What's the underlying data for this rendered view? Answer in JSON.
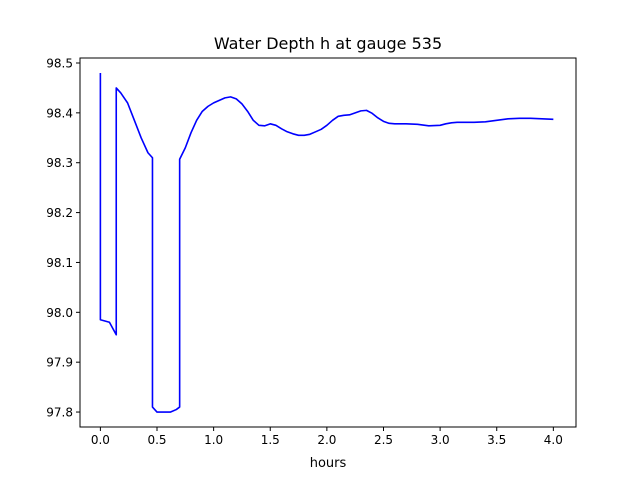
{
  "chart_data": {
    "type": "line",
    "title": "Water Depth h at gauge 535",
    "xlabel": "hours",
    "ylabel": "",
    "xlim": [
      -0.18,
      4.2
    ],
    "ylim": [
      97.77,
      98.51
    ],
    "x_ticks": [
      0.0,
      0.5,
      1.0,
      1.5,
      2.0,
      2.5,
      3.0,
      3.5,
      4.0
    ],
    "x_tick_labels": [
      "0.0",
      "0.5",
      "1.0",
      "1.5",
      "2.0",
      "2.5",
      "3.0",
      "3.5",
      "4.0"
    ],
    "y_ticks": [
      97.8,
      97.9,
      98.0,
      98.1,
      98.2,
      98.3,
      98.4,
      98.5
    ],
    "y_tick_labels": [
      "97.8",
      "97.9",
      "98.0",
      "98.1",
      "98.2",
      "98.3",
      "98.4",
      "98.5"
    ],
    "grid": false,
    "series": [
      {
        "color": "#0000ff",
        "x": [
          0.0,
          0.0,
          0.08,
          0.14,
          0.14,
          0.18,
          0.24,
          0.3,
          0.36,
          0.42,
          0.46,
          0.46,
          0.5,
          0.56,
          0.62,
          0.67,
          0.7,
          0.7,
          0.75,
          0.8,
          0.85,
          0.9,
          0.95,
          1.0,
          1.05,
          1.1,
          1.15,
          1.2,
          1.25,
          1.3,
          1.35,
          1.4,
          1.45,
          1.5,
          1.55,
          1.6,
          1.65,
          1.7,
          1.75,
          1.8,
          1.85,
          1.9,
          1.95,
          2.0,
          2.05,
          2.1,
          2.15,
          2.2,
          2.25,
          2.3,
          2.35,
          2.4,
          2.45,
          2.5,
          2.55,
          2.6,
          2.65,
          2.7,
          2.8,
          2.9,
          3.0,
          3.05,
          3.1,
          3.15,
          3.2,
          3.25,
          3.3,
          3.4,
          3.5,
          3.6,
          3.7,
          3.8,
          3.9,
          4.0
        ],
        "y": [
          98.48,
          97.985,
          97.98,
          97.955,
          98.45,
          98.44,
          98.42,
          98.385,
          98.35,
          98.32,
          98.31,
          97.81,
          97.8,
          97.8,
          97.8,
          97.805,
          97.81,
          98.307,
          98.33,
          98.36,
          98.385,
          98.403,
          98.413,
          98.42,
          98.425,
          98.43,
          98.432,
          98.428,
          98.418,
          98.403,
          98.385,
          98.375,
          98.374,
          98.378,
          98.375,
          98.368,
          98.362,
          98.358,
          98.355,
          98.355,
          98.357,
          98.362,
          98.367,
          98.375,
          98.385,
          98.393,
          98.395,
          98.396,
          98.4,
          98.404,
          98.405,
          98.399,
          98.39,
          98.383,
          98.379,
          98.378,
          98.378,
          98.378,
          98.377,
          98.374,
          98.375,
          98.378,
          98.38,
          98.381,
          98.381,
          98.381,
          98.381,
          98.382,
          98.385,
          98.388,
          98.389,
          98.389,
          98.388,
          98.387
        ]
      }
    ]
  }
}
